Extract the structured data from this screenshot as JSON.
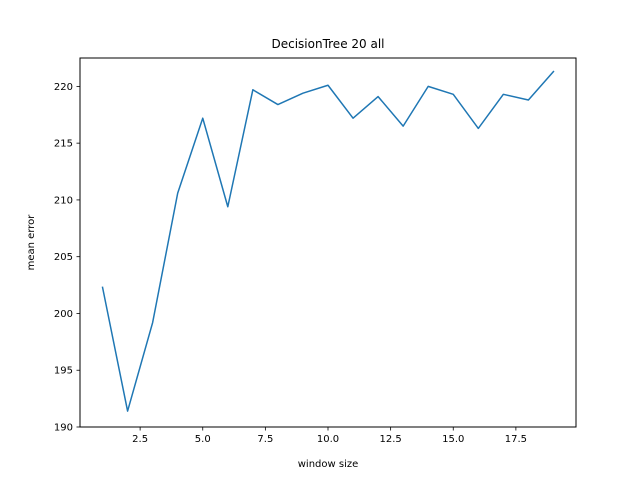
{
  "chart_data": {
    "type": "line",
    "title": "DecisionTree 20 all",
    "xlabel": "window size",
    "ylabel": "mean error",
    "xlim": [
      0.1,
      19.9
    ],
    "ylim": [
      190,
      222.5
    ],
    "xticks": [
      2.5,
      5.0,
      7.5,
      10.0,
      12.5,
      15.0,
      17.5
    ],
    "xtick_labels": [
      "2.5",
      "5.0",
      "7.5",
      "10.0",
      "12.5",
      "15.0",
      "17.5"
    ],
    "yticks": [
      190,
      195,
      200,
      205,
      210,
      215,
      220
    ],
    "ytick_labels": [
      "190",
      "195",
      "200",
      "205",
      "210",
      "215",
      "220"
    ],
    "grid": false,
    "series": [
      {
        "color": "#1f77b4",
        "x": [
          1,
          2,
          3,
          4,
          5,
          6,
          7,
          8,
          9,
          10,
          11,
          12,
          13,
          14,
          15,
          16,
          17,
          18,
          19
        ],
        "y": [
          202.3,
          191.4,
          199.2,
          210.6,
          217.2,
          209.4,
          219.7,
          218.4,
          219.4,
          220.1,
          217.2,
          219.1,
          216.5,
          220.0,
          219.3,
          216.3,
          219.3,
          218.8,
          221.3
        ]
      }
    ]
  }
}
